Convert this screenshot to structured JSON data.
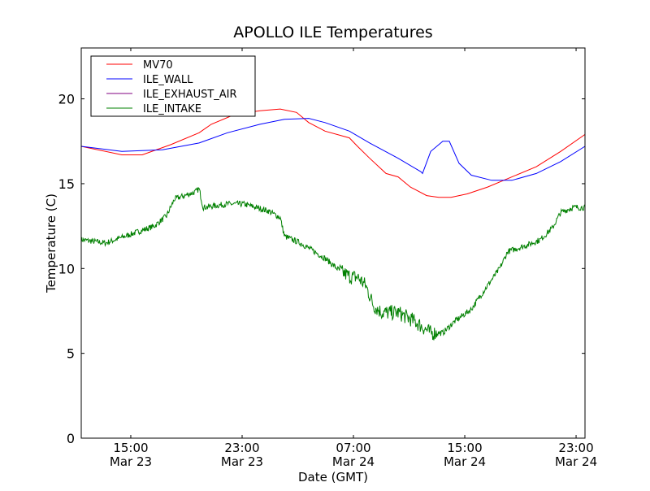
{
  "chart_data": {
    "type": "line",
    "title": "APOLLO ILE Temperatures",
    "xlabel": "Date (GMT)",
    "ylabel": "Temperature (C)",
    "x_units": "hours since Mar 23 00:00 GMT",
    "xlim": [
      11.44,
      47.64
    ],
    "ylim": [
      0,
      23
    ],
    "yticks": [
      0,
      5,
      10,
      15,
      20
    ],
    "xticks": [
      {
        "value": 15,
        "time": "15:00",
        "date": "Mar 23"
      },
      {
        "value": 23,
        "time": "23:00",
        "date": "Mar 23"
      },
      {
        "value": 31,
        "time": "07:00",
        "date": "Mar 24"
      },
      {
        "value": 39,
        "time": "15:00",
        "date": "Mar 24"
      },
      {
        "value": 47,
        "time": "23:00",
        "date": "Mar 24"
      }
    ],
    "grid": false,
    "legend_position": "top-left",
    "series": [
      {
        "name": "MV70",
        "color": "#ff0000",
        "x": [
          11.44,
          14.36,
          15.82,
          17.86,
          19.91,
          20.78,
          22.53,
          24.28,
          25.74,
          26.91,
          27.79,
          28.96,
          30.71,
          31.29,
          32.17,
          33.34,
          34.21,
          35.09,
          36.26,
          37.13,
          38.01,
          39.18,
          40.64,
          42.39,
          44.14,
          45.89,
          47.64
        ],
        "y": [
          17.2,
          16.7,
          16.7,
          17.3,
          18.0,
          18.5,
          19.1,
          19.3,
          19.4,
          19.2,
          18.6,
          18.1,
          17.7,
          17.2,
          16.5,
          15.6,
          15.4,
          14.8,
          14.3,
          14.2,
          14.2,
          14.4,
          14.8,
          15.4,
          16.0,
          16.9,
          17.9
        ]
      },
      {
        "name": "ILE_WALL",
        "color": "#0000ff",
        "x": [
          11.44,
          14.36,
          17.28,
          19.91,
          21.95,
          24.28,
          26.04,
          27.79,
          28.96,
          30.71,
          32.17,
          34.21,
          35.85,
          35.96,
          36.55,
          37.42,
          37.89,
          38.59,
          39.47,
          40.93,
          42.39,
          44.14,
          45.89,
          47.64
        ],
        "y": [
          17.2,
          16.9,
          17.0,
          17.4,
          18.0,
          18.5,
          18.8,
          18.85,
          18.6,
          18.1,
          17.4,
          16.5,
          15.7,
          15.6,
          16.9,
          17.5,
          17.5,
          16.2,
          15.5,
          15.2,
          15.2,
          15.6,
          16.3,
          17.2
        ]
      },
      {
        "name": "ILE_EXHAUST_AIR",
        "color": "#800080",
        "x": [],
        "y": []
      },
      {
        "name": "ILE_INTAKE",
        "color": "#008000",
        "x": [
          11.44,
          13.19,
          14.94,
          16.69,
          17.57,
          18.15,
          19.61,
          19.91,
          20.2,
          21.95,
          23.12,
          24.87,
          25.74,
          26.04,
          27.2,
          28.96,
          30.12,
          30.82,
          31.29,
          31.88,
          32.46,
          33.04,
          34.21,
          35.38,
          36.55,
          37.42,
          38.3,
          39.47,
          40.64,
          41.51,
          42.09,
          43.55,
          44.43,
          45.31,
          45.89,
          46.77,
          47.64
        ],
        "y": [
          11.7,
          11.5,
          12.0,
          12.5,
          13.1,
          14.1,
          14.5,
          14.7,
          13.6,
          13.8,
          13.8,
          13.4,
          13.0,
          11.9,
          11.5,
          10.6,
          9.8,
          9.5,
          9.5,
          9.0,
          7.8,
          7.4,
          7.4,
          6.9,
          6.2,
          6.2,
          6.9,
          7.6,
          9.0,
          10.0,
          11.0,
          11.4,
          11.7,
          12.4,
          13.3,
          13.6,
          13.6
        ]
      }
    ]
  }
}
